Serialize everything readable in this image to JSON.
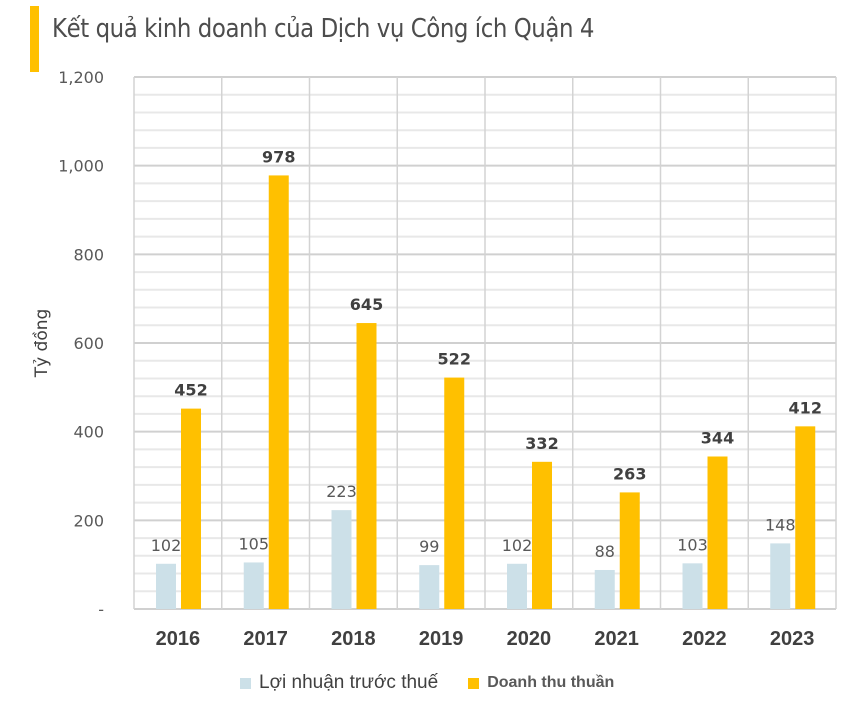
{
  "chart_data": {
    "type": "bar",
    "title": "Kết quả kinh doanh của Dịch vụ Công ích Quận 4",
    "ylabel": "Tỷ đồng",
    "xlabel": "",
    "ylim": [
      0,
      1200
    ],
    "yticks": [
      "-",
      "200",
      "400",
      "600",
      "800",
      "1,000",
      "1,200"
    ],
    "ytick_values": [
      0,
      200,
      400,
      600,
      800,
      1000,
      1200
    ],
    "grid": true,
    "legend_position": "bottom",
    "categories": [
      "2016",
      "2017",
      "2018",
      "2019",
      "2020",
      "2021",
      "2022",
      "2023"
    ],
    "series": [
      {
        "name": "Lợi nhuận trước thuế",
        "color": "#CCE0E8",
        "values": [
          102,
          105,
          223,
          99,
          102,
          88,
          103,
          148
        ]
      },
      {
        "name": "Doanh thu thuần",
        "color": "#FFC000",
        "values": [
          452,
          978,
          645,
          522,
          332,
          263,
          344,
          412
        ]
      }
    ]
  }
}
